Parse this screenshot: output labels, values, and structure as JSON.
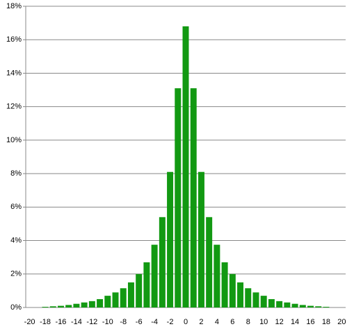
{
  "chart_data": {
    "type": "bar",
    "categories": [
      -20,
      null,
      -18,
      null,
      -16,
      null,
      -14,
      null,
      -12,
      null,
      -10,
      null,
      -8,
      null,
      -6,
      null,
      -4,
      null,
      -2,
      null,
      0,
      null,
      2,
      null,
      4,
      null,
      6,
      null,
      8,
      null,
      10,
      null,
      12,
      null,
      14,
      null,
      16,
      null,
      18,
      null,
      20
    ],
    "values": [
      0,
      0,
      0.04,
      0.07,
      0.1,
      0.15,
      0.22,
      0.3,
      0.38,
      0.5,
      0.7,
      0.9,
      1.15,
      1.5,
      2.0,
      2.7,
      3.75,
      5.4,
      8.1,
      13.1,
      16.8,
      13.1,
      8.1,
      5.4,
      3.75,
      2.7,
      2.0,
      1.5,
      1.15,
      0.9,
      0.7,
      0.5,
      0.38,
      0.3,
      0.22,
      0.15,
      0.1,
      0.07,
      0.04,
      0,
      0
    ],
    "color": "#129912",
    "ylim": [
      0,
      18
    ],
    "yticks": [
      {
        "value": 0,
        "label": "0%"
      },
      {
        "value": 2,
        "label": "2%"
      },
      {
        "value": 4,
        "label": "4%"
      },
      {
        "value": 6,
        "label": "6%"
      },
      {
        "value": 8,
        "label": "8%"
      },
      {
        "value": 10,
        "label": "10%"
      },
      {
        "value": 12,
        "label": "12%"
      },
      {
        "value": 14,
        "label": "14%"
      },
      {
        "value": 16,
        "label": "16%"
      },
      {
        "value": 18,
        "label": "18%"
      }
    ],
    "grid": true
  }
}
